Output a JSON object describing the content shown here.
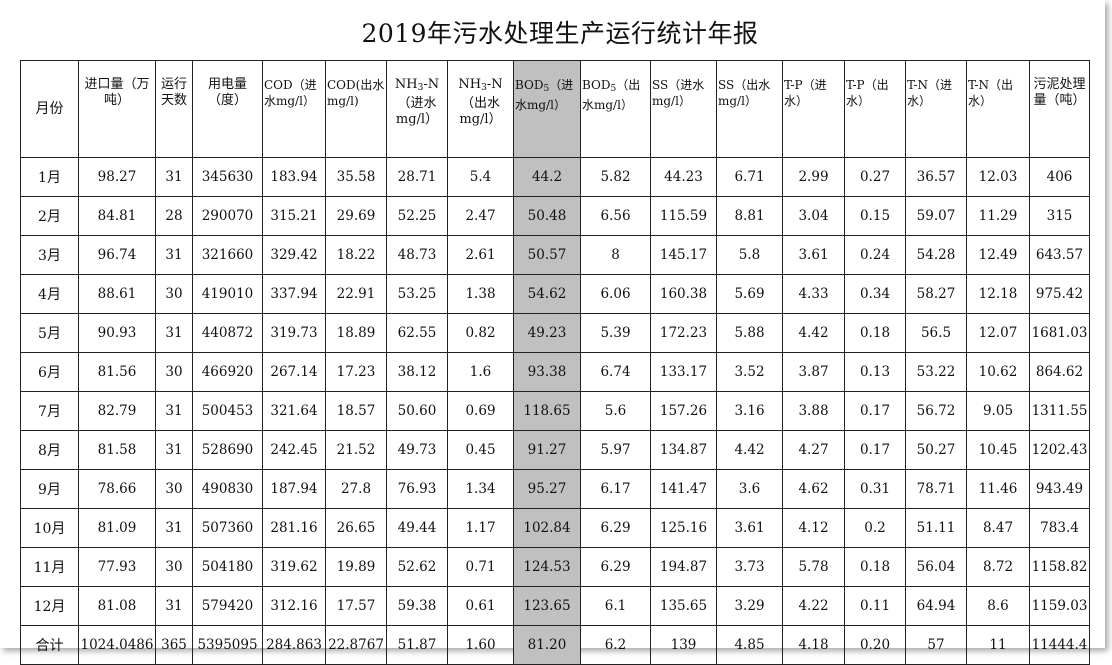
{
  "title": "2019年污水处理生产运行统计年报",
  "headers": [
    {
      "text": "月份"
    },
    {
      "text": "进口量（万吨）"
    },
    {
      "text": "运行天数"
    },
    {
      "text": "用电量（度）"
    },
    {
      "text": "COD（进水mg/l）"
    },
    {
      "text": "COD(出水mg/l)"
    },
    {
      "pre": "NH",
      "sub": "3",
      "post": "-N（进水mg/l）"
    },
    {
      "pre": "NH",
      "sub": "3",
      "post": "-N（出水mg/l）"
    },
    {
      "pre": "BOD",
      "sub": "5",
      "post": "（进水mg/l）"
    },
    {
      "pre": "BOD",
      "sub": "5",
      "post": "（出水mg/l）"
    },
    {
      "text": "SS（进水mg/l）"
    },
    {
      "text": "SS（出水mg/l）"
    },
    {
      "text": "T-P（进水）"
    },
    {
      "text": "T-P（出水）"
    },
    {
      "text": "T-N（进水）"
    },
    {
      "text": "T-N（出水）"
    },
    {
      "text": "污泥处理量（吨）"
    }
  ],
  "rows": [
    [
      "1月",
      "98.27",
      "31",
      "345630",
      "183.94",
      "35.58",
      "28.71",
      "5.4",
      "44.2",
      "5.82",
      "44.23",
      "6.71",
      "2.99",
      "0.27",
      "36.57",
      "12.03",
      "406"
    ],
    [
      "2月",
      "84.81",
      "28",
      "290070",
      "315.21",
      "29.69",
      "52.25",
      "2.47",
      "50.48",
      "6.56",
      "115.59",
      "8.81",
      "3.04",
      "0.15",
      "59.07",
      "11.29",
      "315"
    ],
    [
      "3月",
      "96.74",
      "31",
      "321660",
      "329.42",
      "18.22",
      "48.73",
      "2.61",
      "50.57",
      "8",
      "145.17",
      "5.8",
      "3.61",
      "0.24",
      "54.28",
      "12.49",
      "643.57"
    ],
    [
      "4月",
      "88.61",
      "30",
      "419010",
      "337.94",
      "22.91",
      "53.25",
      "1.38",
      "54.62",
      "6.06",
      "160.38",
      "5.69",
      "4.33",
      "0.34",
      "58.27",
      "12.18",
      "975.42"
    ],
    [
      "5月",
      "90.93",
      "31",
      "440872",
      "319.73",
      "18.89",
      "62.55",
      "0.82",
      "49.23",
      "5.39",
      "172.23",
      "5.88",
      "4.42",
      "0.18",
      "56.5",
      "12.07",
      "1681.03"
    ],
    [
      "6月",
      "81.56",
      "30",
      "466920",
      "267.14",
      "17.23",
      "38.12",
      "1.6",
      "93.38",
      "6.74",
      "133.17",
      "3.52",
      "3.87",
      "0.13",
      "53.22",
      "10.62",
      "864.62"
    ],
    [
      "7月",
      "82.79",
      "31",
      "500453",
      "321.64",
      "18.57",
      "50.60",
      "0.69",
      "118.65",
      "5.6",
      "157.26",
      "3.16",
      "3.88",
      "0.17",
      "56.72",
      "9.05",
      "1311.55"
    ],
    [
      "8月",
      "81.58",
      "31",
      "528690",
      "242.45",
      "21.52",
      "49.73",
      "0.45",
      "91.27",
      "5.97",
      "134.87",
      "4.42",
      "4.27",
      "0.17",
      "50.27",
      "10.45",
      "1202.43"
    ],
    [
      "9月",
      "78.66",
      "30",
      "490830",
      "187.94",
      "27.8",
      "76.93",
      "1.34",
      "95.27",
      "6.17",
      "141.47",
      "3.6",
      "4.62",
      "0.31",
      "78.71",
      "11.46",
      "943.49"
    ],
    [
      "10月",
      "81.09",
      "31",
      "507360",
      "281.16",
      "26.65",
      "49.44",
      "1.17",
      "102.84",
      "6.29",
      "125.16",
      "3.61",
      "4.12",
      "0.2",
      "51.11",
      "8.47",
      "783.4"
    ],
    [
      "11月",
      "77.93",
      "30",
      "504180",
      "319.62",
      "19.89",
      "52.62",
      "0.71",
      "124.53",
      "6.29",
      "194.87",
      "3.73",
      "5.78",
      "0.18",
      "56.04",
      "8.72",
      "1158.82"
    ],
    [
      "12月",
      "81.08",
      "31",
      "579420",
      "312.16",
      "17.57",
      "59.38",
      "0.61",
      "123.65",
      "6.1",
      "135.65",
      "3.29",
      "4.22",
      "0.11",
      "64.94",
      "8.6",
      "1159.03"
    ],
    [
      "合计",
      "1024.0486",
      "365",
      "5395095",
      "284.863",
      "22.8767",
      "51.87",
      "1.60",
      "81.20",
      "6.2",
      "139",
      "4.85",
      "4.18",
      "0.20",
      "57",
      "11",
      "11444.4"
    ]
  ],
  "highlight_color": "#c0c0c0"
}
